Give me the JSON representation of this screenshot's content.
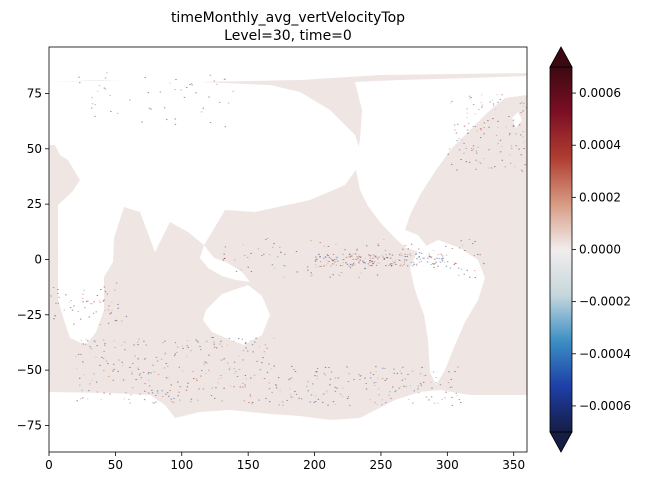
{
  "chart_data": {
    "type": "heatmap",
    "title": "timeMonthly_avg_vertVelocityTop",
    "subtitle": "Level=30, time=0",
    "xlabel": "",
    "ylabel": "",
    "xlim": [
      0,
      360
    ],
    "ylim": [
      -87,
      96
    ],
    "x_ticks": [
      0,
      50,
      100,
      150,
      200,
      250,
      300,
      350
    ],
    "y_ticks": [
      -75,
      -50,
      -25,
      0,
      25,
      50,
      75
    ],
    "grid": false,
    "colorbar": {
      "orientation": "vertical",
      "placement": "right",
      "extend": "both",
      "range": [
        -0.0007,
        0.0007
      ],
      "ticks": [
        -0.0006,
        -0.0004,
        -0.0002,
        0.0,
        0.0002,
        0.0004,
        0.0006
      ],
      "tick_labels": [
        "−0.0006",
        "−0.0004",
        "−0.0002",
        "0.0000",
        "0.0002",
        "0.0004",
        "0.0006"
      ],
      "colormap": "balance",
      "colors": [
        "#161d45",
        "#1d3fa8",
        "#3c8fc4",
        "#c6d7dc",
        "#f1eded",
        "#d89a83",
        "#b03e31",
        "#7d0f24",
        "#3c0912"
      ]
    },
    "ocean_background_color": "#efe6e4",
    "land_color": "#ffffff",
    "field_summary": "near-zero vertical velocity over most of the ocean, small-scale positive and negative patches in the equatorial band, Southern Ocean, North Atlantic and Arctic coasts"
  }
}
